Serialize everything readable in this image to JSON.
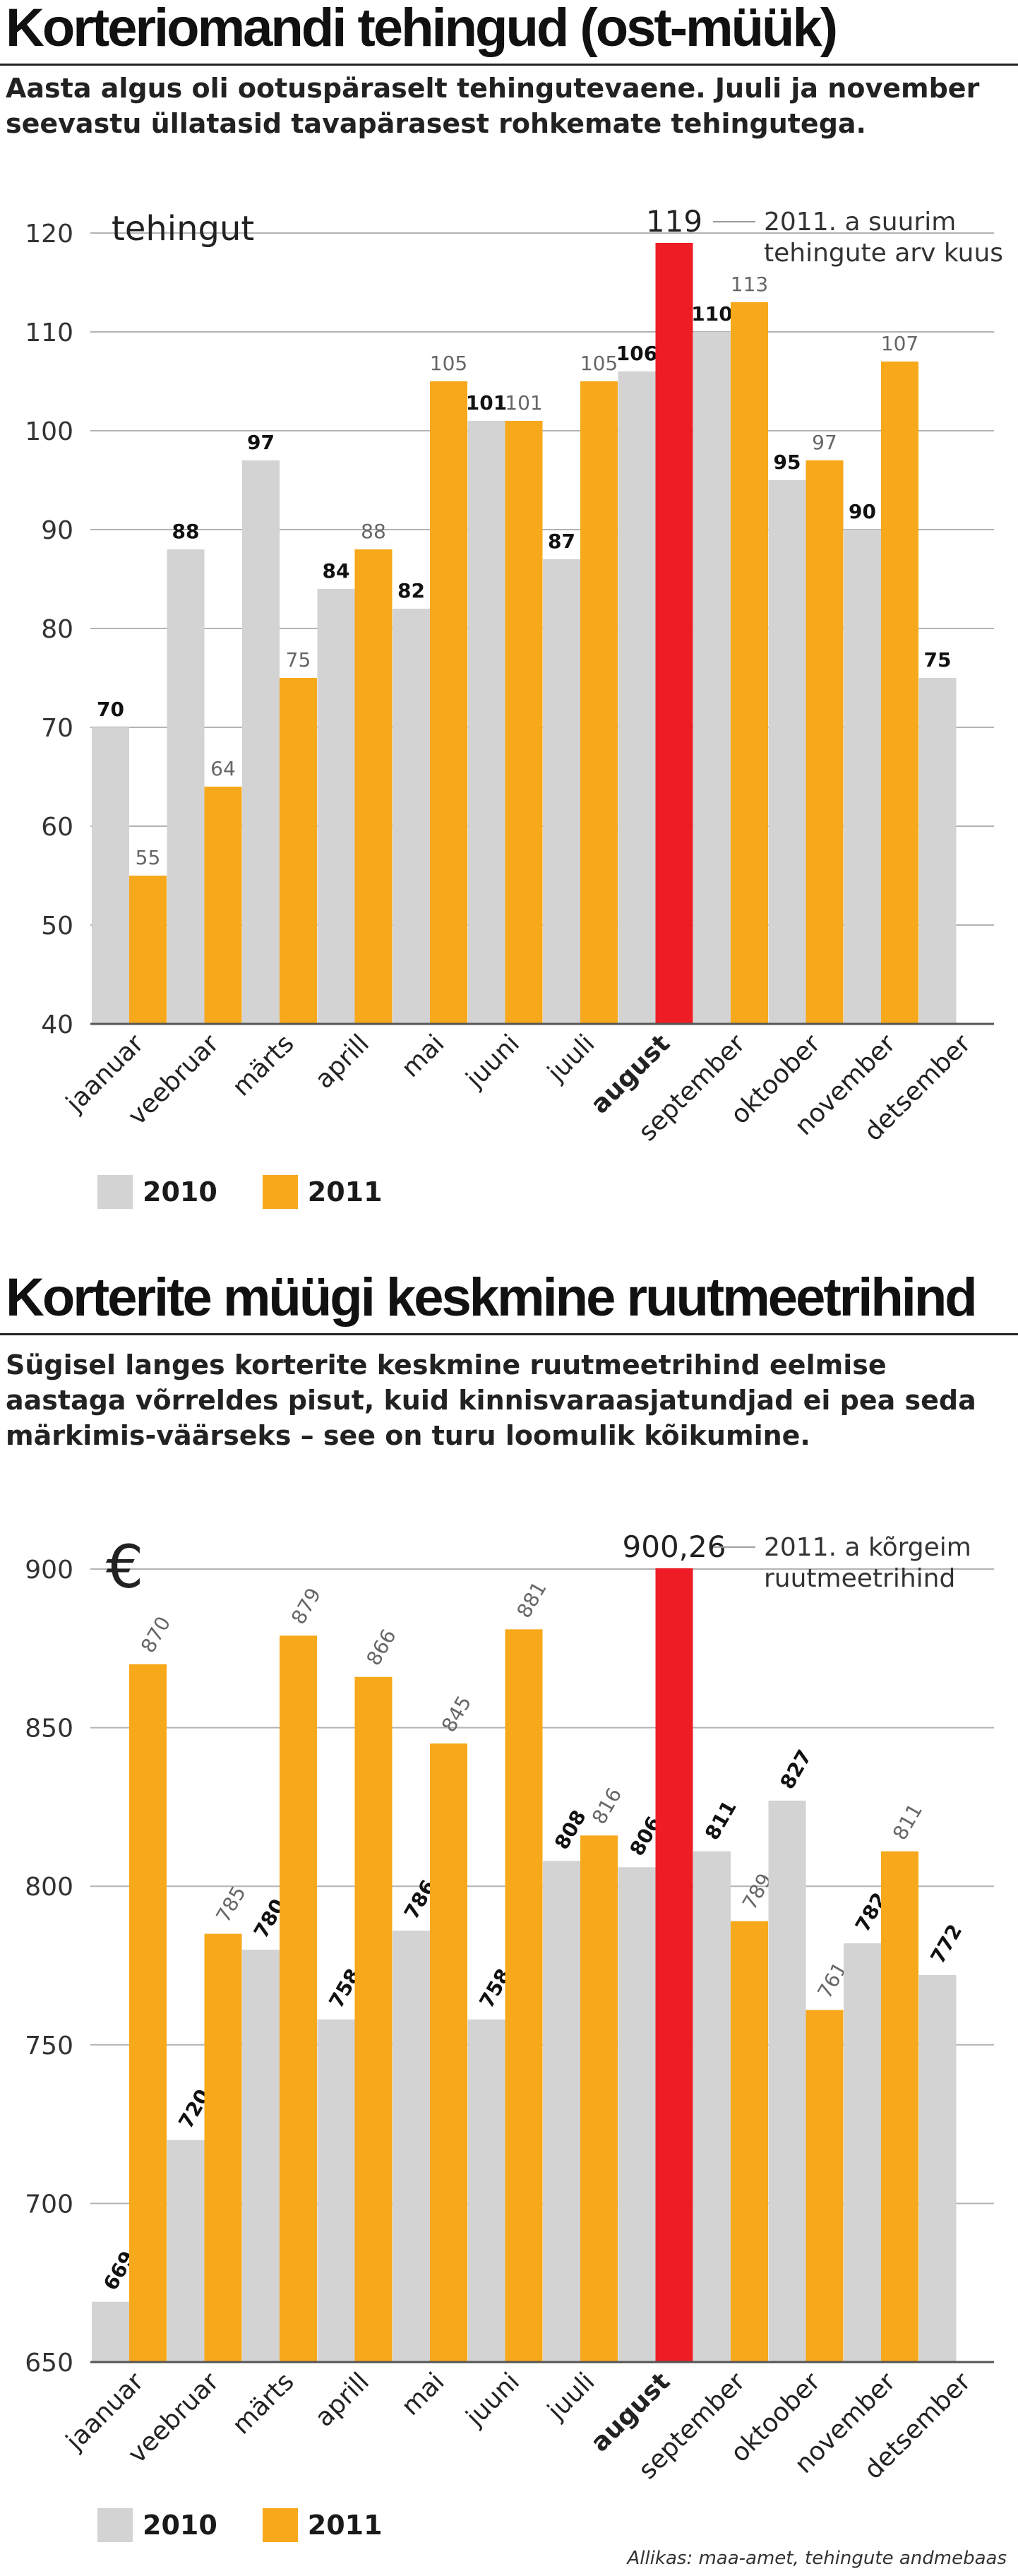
{
  "colors": {
    "y2010": "#d3d3d3",
    "y2011": "#f7a81b",
    "highlight": "#ee1c25",
    "grid": "#b3b3b3",
    "axis": "#555555"
  },
  "legend": {
    "label_2010": "2010",
    "label_2011": "2011"
  },
  "section1": {
    "title": "Korteriomandi tehingud (ost-müük)",
    "subtitle": "Aasta algus oli ootuspäraselt tehingutevaene. Juuli ja november seevastu üllatasid tavapärasest rohkemate tehingutega."
  },
  "section2": {
    "title": "Korterite müügi keskmine ruutmeetrihind",
    "subtitle": "Sügisel langes korterite keskmine ruutmeetrihind eelmise aastaga võrreldes pisut, kuid kinnisvaraasjatundjad ei pea seda märkimis-väärseks – see on turu loomulik kõikumine."
  },
  "source": "Allikas: maa-amet, tehingute andmebaas",
  "chart_data": [
    {
      "type": "bar",
      "ylabel": "tehingut",
      "ylim": [
        40,
        120
      ],
      "yticks": [
        40,
        50,
        60,
        70,
        80,
        90,
        100,
        110,
        120
      ],
      "grid": true,
      "legend": "bottom-left",
      "categories": [
        "jaanuar",
        "veebruar",
        "märts",
        "aprill",
        "mai",
        "juuni",
        "juuli",
        "august",
        "september",
        "oktoober",
        "november",
        "detsember"
      ],
      "bold_category": "august",
      "series": [
        {
          "name": "2010",
          "values": [
            70,
            88,
            97,
            84,
            82,
            101,
            87,
            106,
            110,
            95,
            90,
            75
          ]
        },
        {
          "name": "2011",
          "values": [
            55,
            64,
            75,
            88,
            105,
            101,
            105,
            119,
            113,
            97,
            107,
            null
          ]
        }
      ],
      "highlight": {
        "series": "2011",
        "category": "august",
        "label": "119"
      },
      "annotation": [
        "2011. a suurim",
        "tehingute arv kuus"
      ]
    },
    {
      "type": "bar",
      "ylabel": "€",
      "ylim": [
        650,
        900
      ],
      "yticks": [
        650,
        700,
        750,
        800,
        850,
        900
      ],
      "grid": true,
      "legend": "bottom-left",
      "categories": [
        "jaanuar",
        "veebruar",
        "märts",
        "aprill",
        "mai",
        "juuni",
        "juuli",
        "august",
        "september",
        "oktoober",
        "november",
        "detsember"
      ],
      "bold_category": "august",
      "series": [
        {
          "name": "2010",
          "values": [
            669,
            720,
            780,
            758,
            786,
            758,
            808,
            806,
            811,
            827,
            782,
            772
          ]
        },
        {
          "name": "2011",
          "values": [
            870,
            785,
            879,
            866,
            845,
            881,
            816,
            900.26,
            789,
            761,
            811,
            null
          ]
        }
      ],
      "highlight": {
        "series": "2011",
        "category": "august",
        "label": "900,26"
      },
      "annotation": [
        "2011. a kõrgeim",
        "ruutmeetrihind"
      ]
    }
  ]
}
